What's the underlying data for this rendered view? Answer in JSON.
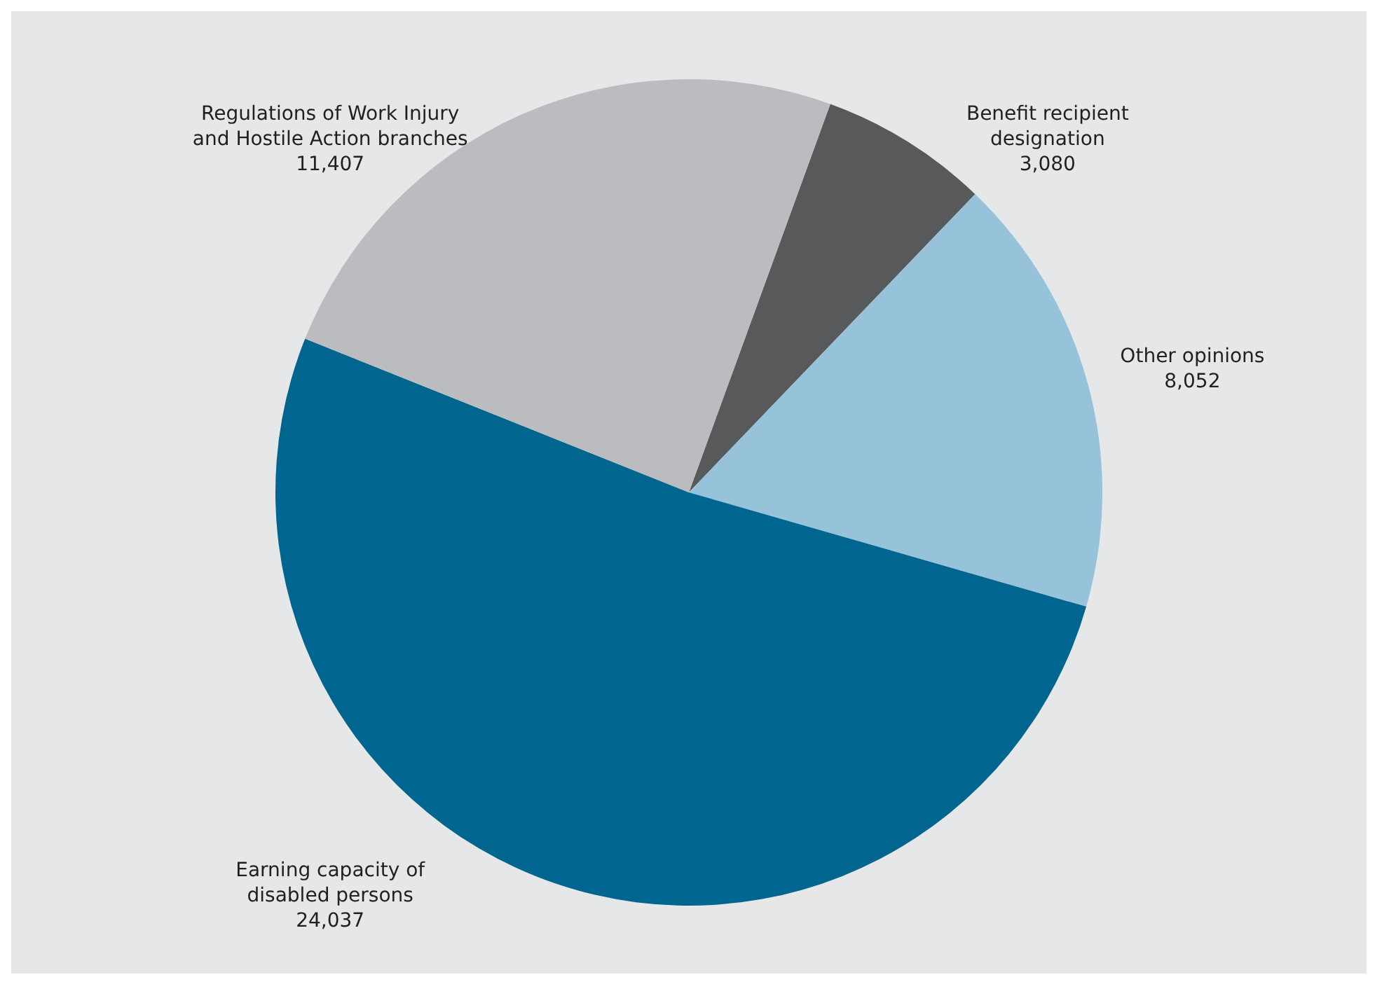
{
  "chart_data": {
    "type": "pie",
    "categories": [
      "Benefit recipient designation",
      "Other opinions",
      "Earning capacity of disabled persons",
      "Regulations of Work Injury and Hostile Action branches"
    ],
    "values": [
      3080,
      8052,
      24037,
      11407
    ],
    "colors": [
      "#58595b",
      "#96c3da",
      "#00668f",
      "#bbbcc0"
    ],
    "value_labels": [
      "3,080",
      "8,052",
      "24,037",
      "11,407"
    ]
  }
}
